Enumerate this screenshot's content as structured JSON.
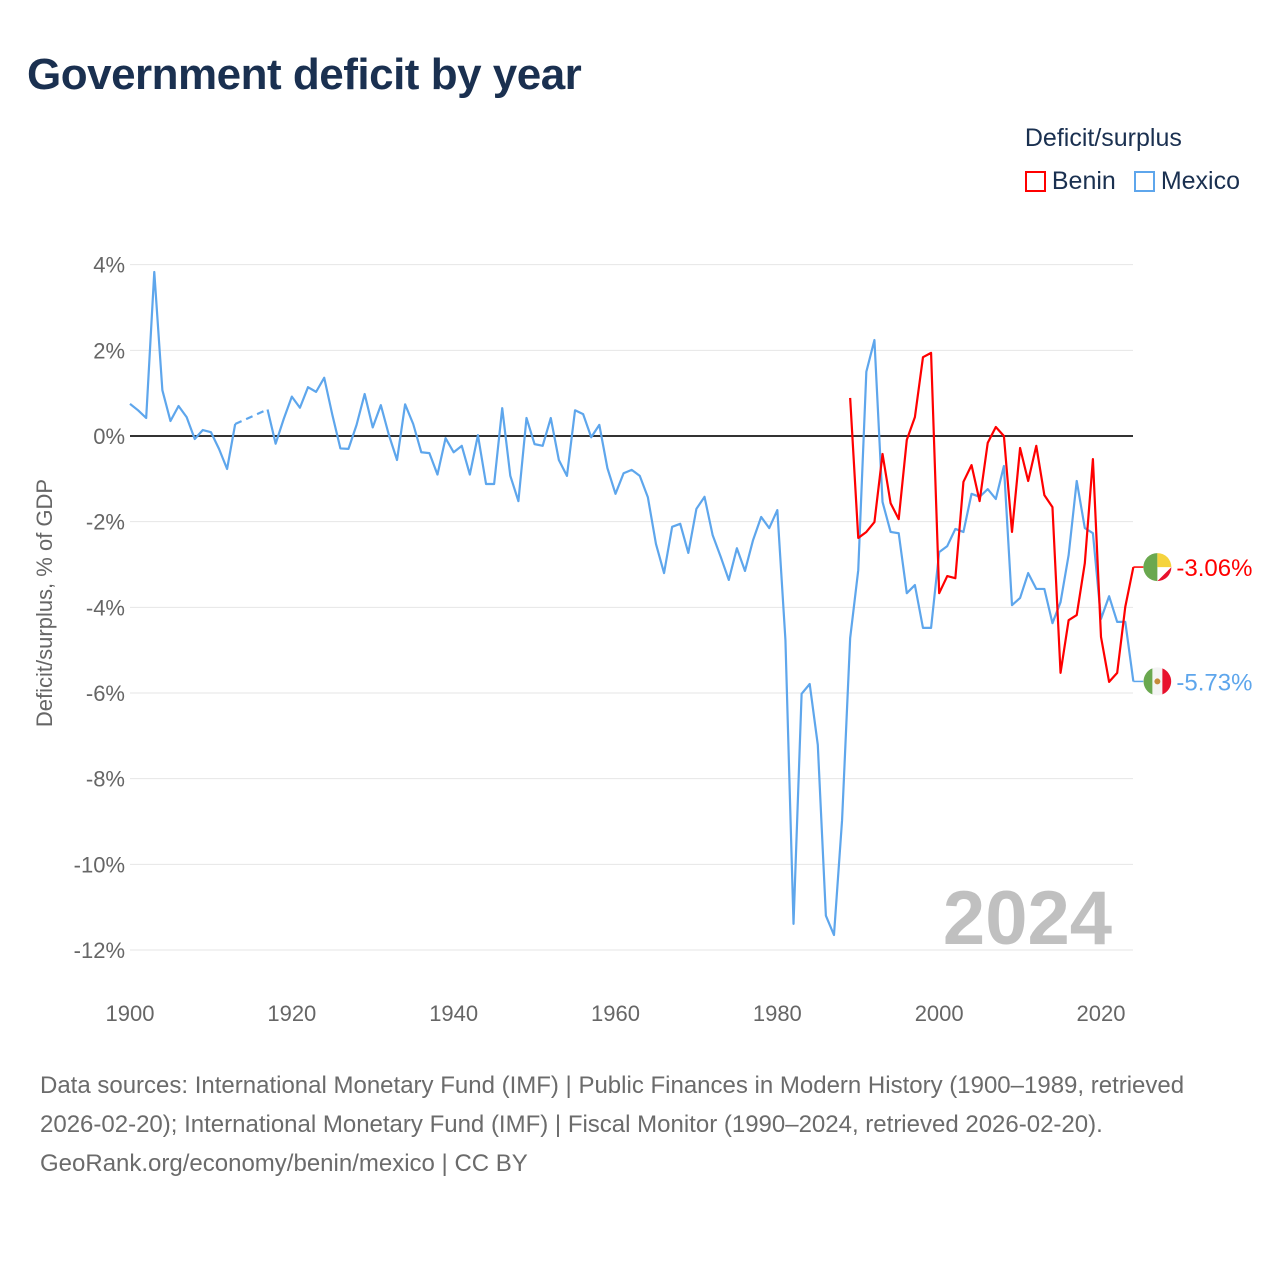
{
  "title": "Government deficit by year",
  "legend": {
    "title": "Deficit/surplus",
    "items": [
      "Benin",
      "Mexico"
    ]
  },
  "colors": {
    "Benin": "#ff0000",
    "Mexico": "#5ea6ec",
    "zero": "#333333",
    "grid": "#e6e6e6"
  },
  "footer": {
    "sources": "Data sources: International Monetary Fund (IMF) | Public Finances in Modern History (1900–1989, retrieved 2026-02-20); International Monetary Fund (IMF) | Fiscal Monitor (1990–2024, retrieved 2026-02-20).",
    "credit": "GeoRank.org/economy/benin/mexico | CC BY"
  },
  "chart_data": {
    "type": "line",
    "title": "Government deficit by year",
    "xlabel": "",
    "ylabel": "Deficit/surplus, % of GDP",
    "xlim": [
      1900,
      2024
    ],
    "ylim": [
      -12,
      4
    ],
    "x_ticks": [
      1900,
      1920,
      1940,
      1960,
      1980,
      2000,
      2020
    ],
    "x_tick_labels": [
      "1900",
      "1920",
      "1940",
      "1960",
      "1980",
      "2000",
      "2020"
    ],
    "y_ticks": [
      4,
      2,
      0,
      -2,
      -4,
      -6,
      -8,
      -10,
      -12
    ],
    "y_tick_labels": [
      "4%",
      "2%",
      "0%",
      "-2%",
      "-4%",
      "-6%",
      "-8%",
      "-10%",
      "-12%"
    ],
    "year_watermark": "2024",
    "grid": true,
    "legend_position": "top-right",
    "series": [
      {
        "name": "Mexico",
        "end_label": "-5.73%",
        "points": [
          [
            1900,
            0.75
          ],
          [
            1901,
            0.6
          ],
          [
            1902,
            0.42
          ],
          [
            1903,
            3.83
          ],
          [
            1904,
            1.07
          ],
          [
            1905,
            0.35
          ],
          [
            1906,
            0.7
          ],
          [
            1907,
            0.44
          ],
          [
            1908,
            -0.07
          ],
          [
            1909,
            0.14
          ],
          [
            1910,
            0.09
          ],
          [
            1911,
            -0.3
          ],
          [
            1912,
            -0.77
          ],
          [
            1913,
            0.28
          ],
          [
            1917,
            0.62
          ],
          [
            1918,
            -0.18
          ],
          [
            1919,
            0.4
          ],
          [
            1920,
            0.92
          ],
          [
            1921,
            0.66
          ],
          [
            1922,
            1.14
          ],
          [
            1923,
            1.03
          ],
          [
            1924,
            1.36
          ],
          [
            1925,
            0.5
          ],
          [
            1926,
            -0.29
          ],
          [
            1927,
            -0.3
          ],
          [
            1928,
            0.26
          ],
          [
            1929,
            0.98
          ],
          [
            1930,
            0.2
          ],
          [
            1931,
            0.72
          ],
          [
            1932,
            0.02
          ],
          [
            1933,
            -0.56
          ],
          [
            1934,
            0.74
          ],
          [
            1935,
            0.28
          ],
          [
            1936,
            -0.38
          ],
          [
            1937,
            -0.4
          ],
          [
            1938,
            -0.9
          ],
          [
            1939,
            -0.05
          ],
          [
            1940,
            -0.38
          ],
          [
            1941,
            -0.23
          ],
          [
            1942,
            -0.9
          ],
          [
            1943,
            0.02
          ],
          [
            1944,
            -1.12
          ],
          [
            1945,
            -1.12
          ],
          [
            1946,
            0.65
          ],
          [
            1947,
            -0.93
          ],
          [
            1948,
            -1.52
          ],
          [
            1949,
            0.42
          ],
          [
            1950,
            -0.19
          ],
          [
            1951,
            -0.23
          ],
          [
            1952,
            0.42
          ],
          [
            1953,
            -0.56
          ],
          [
            1954,
            -0.93
          ],
          [
            1955,
            0.6
          ],
          [
            1956,
            0.51
          ],
          [
            1957,
            -0.03
          ],
          [
            1958,
            0.26
          ],
          [
            1959,
            -0.75
          ],
          [
            1960,
            -1.35
          ],
          [
            1961,
            -0.87
          ],
          [
            1962,
            -0.79
          ],
          [
            1963,
            -0.93
          ],
          [
            1964,
            -1.43
          ],
          [
            1965,
            -2.52
          ],
          [
            1966,
            -3.2
          ],
          [
            1967,
            -2.12
          ],
          [
            1968,
            -2.05
          ],
          [
            1969,
            -2.73
          ],
          [
            1970,
            -1.7
          ],
          [
            1971,
            -1.42
          ],
          [
            1972,
            -2.31
          ],
          [
            1973,
            -2.82
          ],
          [
            1974,
            -3.36
          ],
          [
            1975,
            -2.62
          ],
          [
            1976,
            -3.15
          ],
          [
            1977,
            -2.43
          ],
          [
            1978,
            -1.89
          ],
          [
            1979,
            -2.15
          ],
          [
            1980,
            -1.73
          ],
          [
            1981,
            -4.76
          ],
          [
            1982,
            -11.39
          ],
          [
            1983,
            -6.02
          ],
          [
            1984,
            -5.79
          ],
          [
            1985,
            -7.21
          ],
          [
            1986,
            -11.2
          ],
          [
            1987,
            -11.65
          ],
          [
            1988,
            -8.97
          ],
          [
            1989,
            -4.72
          ],
          [
            1990,
            -3.13
          ],
          [
            1991,
            1.5
          ],
          [
            1992,
            2.24
          ],
          [
            1993,
            -1.54
          ],
          [
            1994,
            -2.24
          ],
          [
            1995,
            -2.27
          ],
          [
            1996,
            -3.67
          ],
          [
            1997,
            -3.48
          ],
          [
            1998,
            -4.48
          ],
          [
            1999,
            -4.48
          ],
          [
            2000,
            -2.71
          ],
          [
            2001,
            -2.57
          ],
          [
            2002,
            -2.17
          ],
          [
            2003,
            -2.24
          ],
          [
            2004,
            -1.35
          ],
          [
            2005,
            -1.42
          ],
          [
            2006,
            -1.24
          ],
          [
            2007,
            -1.47
          ],
          [
            2008,
            -0.7
          ],
          [
            2009,
            -3.95
          ],
          [
            2010,
            -3.78
          ],
          [
            2011,
            -3.2
          ],
          [
            2012,
            -3.57
          ],
          [
            2013,
            -3.57
          ],
          [
            2014,
            -4.37
          ],
          [
            2015,
            -3.88
          ],
          [
            2016,
            -2.78
          ],
          [
            2017,
            -1.05
          ],
          [
            2018,
            -2.15
          ],
          [
            2019,
            -2.27
          ],
          [
            2020,
            -4.27
          ],
          [
            2021,
            -3.74
          ],
          [
            2022,
            -4.34
          ],
          [
            2023,
            -4.34
          ],
          [
            2024,
            -5.73
          ]
        ]
      },
      {
        "name": "Benin",
        "end_label": "-3.06%",
        "points": [
          [
            1989,
            0.89
          ],
          [
            1990,
            -2.38
          ],
          [
            1991,
            -2.24
          ],
          [
            1992,
            -2.01
          ],
          [
            1993,
            -0.42
          ],
          [
            1994,
            -1.57
          ],
          [
            1995,
            -1.94
          ],
          [
            1996,
            -0.09
          ],
          [
            1997,
            0.44
          ],
          [
            1998,
            1.84
          ],
          [
            1999,
            1.94
          ],
          [
            2000,
            -3.67
          ],
          [
            2001,
            -3.27
          ],
          [
            2002,
            -3.32
          ],
          [
            2003,
            -1.07
          ],
          [
            2004,
            -0.68
          ],
          [
            2005,
            -1.52
          ],
          [
            2006,
            -0.16
          ],
          [
            2007,
            0.21
          ],
          [
            2008,
            0.0
          ],
          [
            2009,
            -2.24
          ],
          [
            2010,
            -0.28
          ],
          [
            2011,
            -1.05
          ],
          [
            2012,
            -0.23
          ],
          [
            2013,
            -1.38
          ],
          [
            2014,
            -1.66
          ],
          [
            2015,
            -5.53
          ],
          [
            2016,
            -4.3
          ],
          [
            2017,
            -4.18
          ],
          [
            2018,
            -2.97
          ],
          [
            2019,
            -0.54
          ],
          [
            2020,
            -4.69
          ],
          [
            2021,
            -5.74
          ],
          [
            2022,
            -5.53
          ],
          [
            2023,
            -3.99
          ],
          [
            2024,
            -3.06
          ]
        ]
      }
    ]
  }
}
